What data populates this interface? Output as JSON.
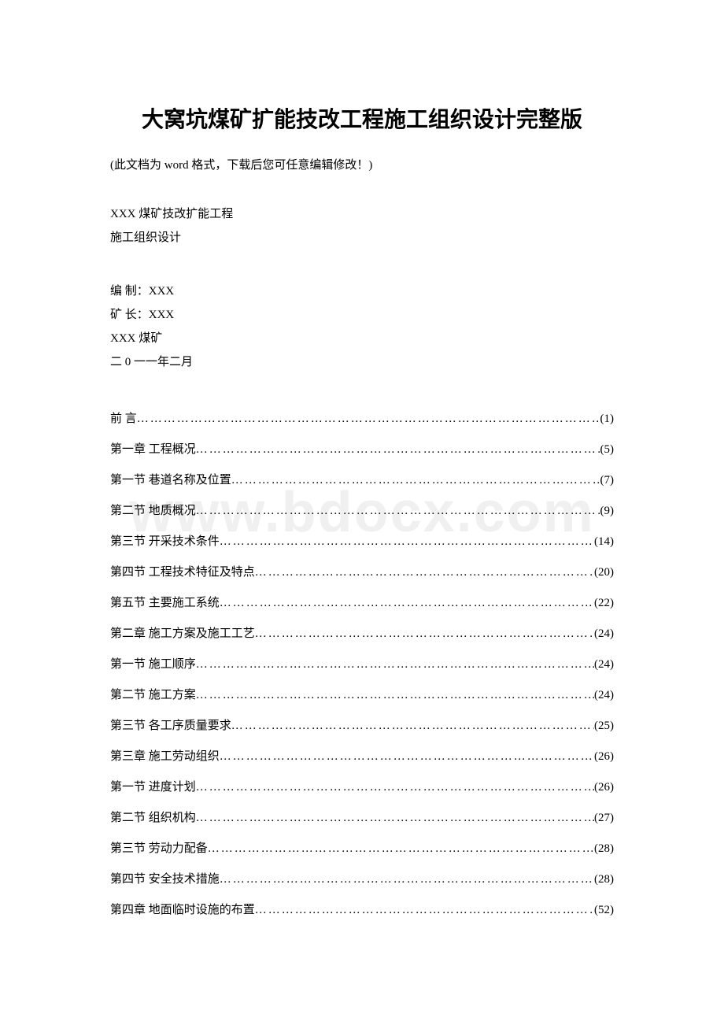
{
  "watermark": "www.bdocx.com",
  "title": "大窝坑煤矿扩能技改工程施工组织设计完整版",
  "subtitle": "(此文档为 word 格式，下载后您可任意编辑修改！)",
  "info": {
    "line1": "XXX 煤矿技改扩能工程",
    "line2": "施工组织设计",
    "line3": "编 制：XXX",
    "line4": "矿 长：XXX",
    "line5": "XXX 煤矿",
    "line6": "二 0 一一年二月"
  },
  "toc": [
    {
      "label": "前 言 ",
      "page": "(1)"
    },
    {
      "label": "第一章 工程概况 ",
      "page": "(5)"
    },
    {
      "label": "第一节 巷道名称及位置 ",
      "page": "(7)"
    },
    {
      "label": "第二节 地质概况 ",
      "page": "(9)"
    },
    {
      "label": "第三节 开采技术条件 ",
      "page": "(14)"
    },
    {
      "label": "第四节 工程技术特征及特点 ",
      "page": "(20)"
    },
    {
      "label": "第五节 主要施工系统 ",
      "page": "(22)"
    },
    {
      "label": "第二章 施工方案及施工工艺 ",
      "page": "(24)"
    },
    {
      "label": "第一节 施工顺序 ",
      "page": "(24)"
    },
    {
      "label": "第二节 施工方案 ",
      "page": "(24)"
    },
    {
      "label": "第三节 各工序质量要求 ",
      "page": "(25)"
    },
    {
      "label": "第三章 施工劳动组织 ",
      "page": "(26)"
    },
    {
      "label": "第一节 进度计划 ",
      "page": "(26)"
    },
    {
      "label": "第二节 组织机构 ",
      "page": "(27)"
    },
    {
      "label": "第三节 劳动力配备 ",
      "page": "(28)"
    },
    {
      "label": "第四节 安全技术措施 ",
      "page": "(28)"
    },
    {
      "label": "第四章 地面临时设施的布置 ",
      "page": "(52)"
    }
  ],
  "colors": {
    "background": "#ffffff",
    "text": "#000000",
    "watermark": "#f0f0f0"
  },
  "typography": {
    "title_fontsize": 28,
    "body_fontsize": 15,
    "watermark_fontsize": 72,
    "line_height_toc": 2.6,
    "line_height_info": 2.0
  }
}
